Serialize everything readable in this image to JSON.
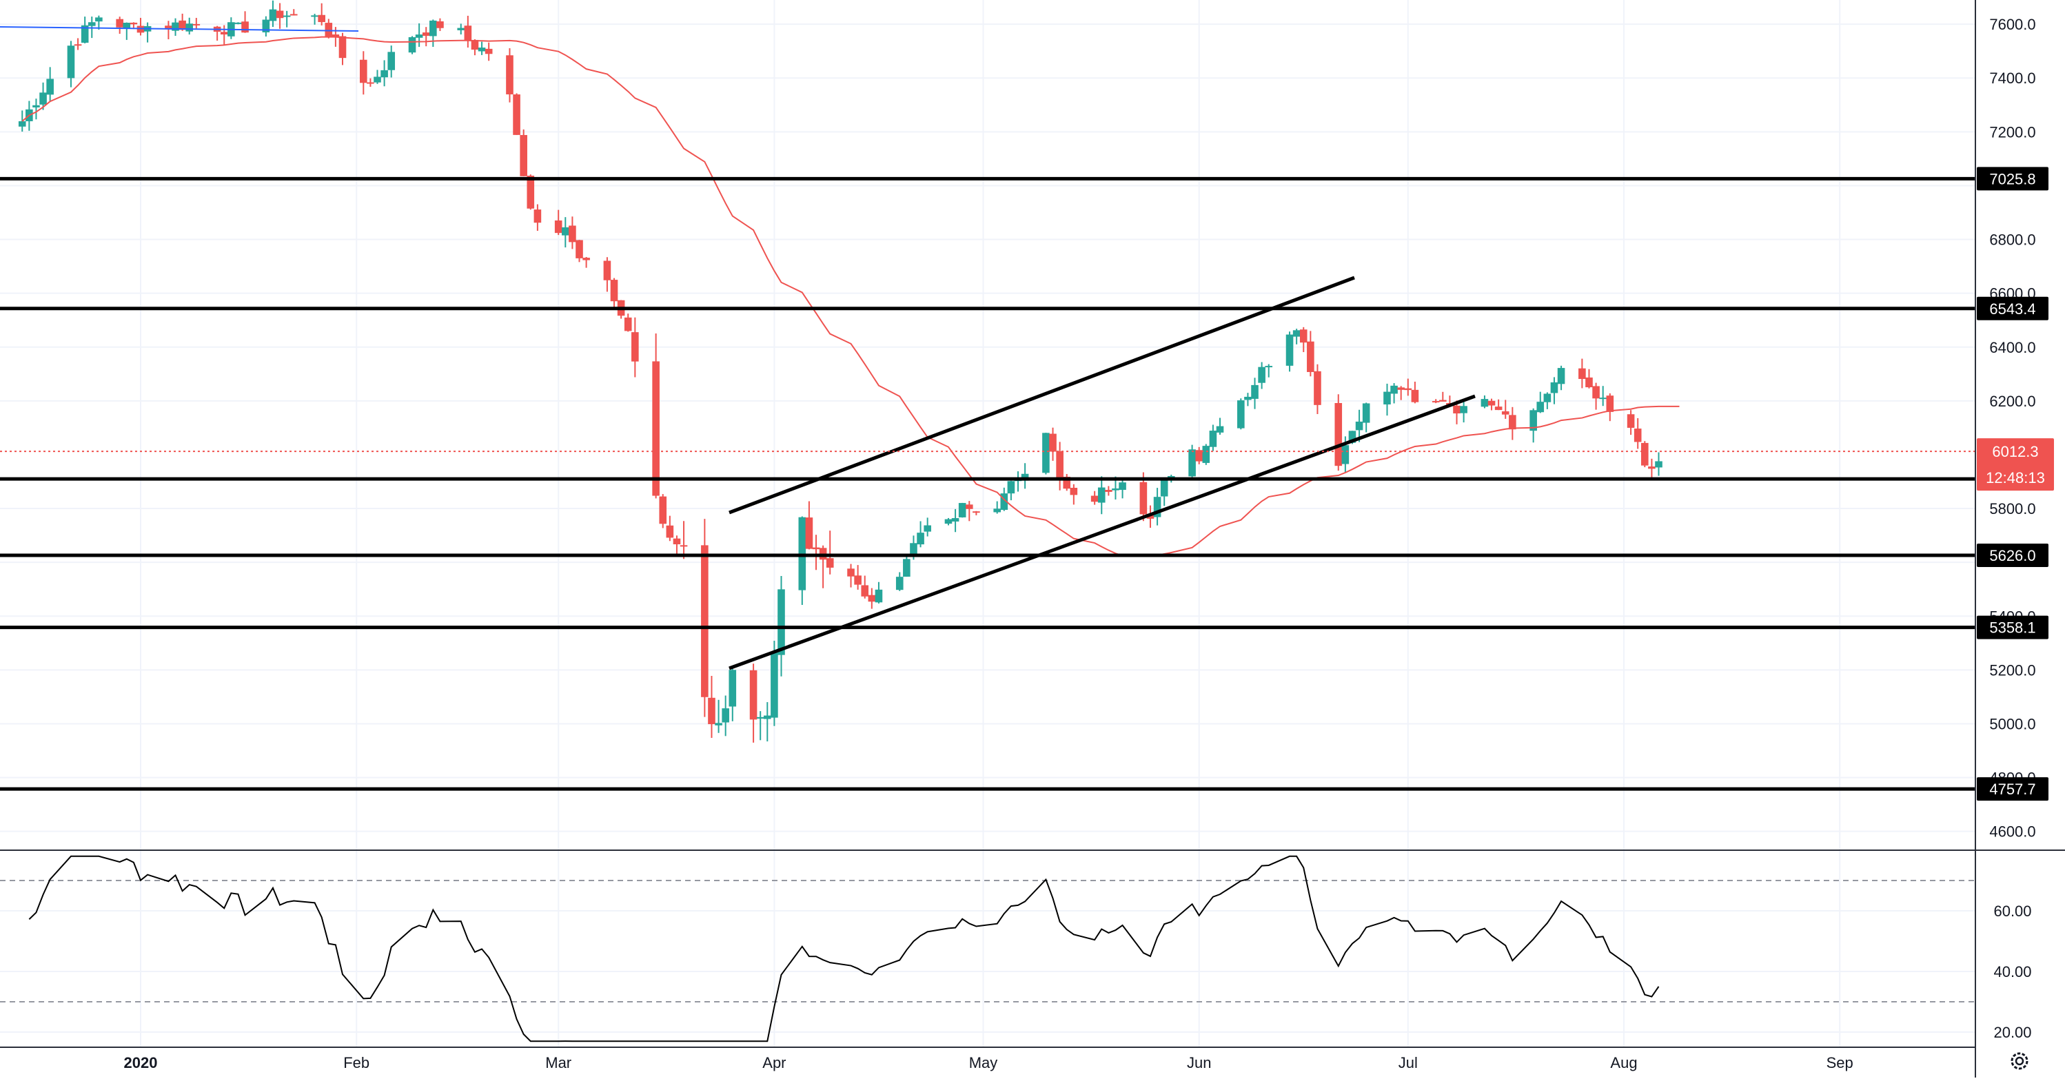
{
  "chart_data": {
    "type": "candlestick",
    "price_axis": {
      "ticks": [
        "7600.0",
        "7400.0",
        "7200.0",
        "6800.0",
        "6600.0",
        "6400.0",
        "6200.0",
        "5800.0",
        "5400.0",
        "5200.0",
        "5000.0",
        "4800.0",
        "4600.0"
      ],
      "range": [
        4530,
        7690
      ]
    },
    "time_axis": {
      "labels": [
        "2020",
        "Feb",
        "Mar",
        "Apr",
        "May",
        "Jun",
        "Jul",
        "Aug",
        "Sep"
      ],
      "bold_label": "2020"
    },
    "levels": [
      {
        "value": 7025.8,
        "label": "7025.8"
      },
      {
        "value": 6543.4,
        "label": "6543.4"
      },
      {
        "value": 5626.0,
        "label": "5626.0"
      },
      {
        "value": 5358.1,
        "label": "5358.1"
      },
      {
        "value": 4757.7,
        "label": "4757.7"
      },
      {
        "value": 5910
      }
    ],
    "last_price": {
      "value": 6012.3,
      "label": "6012.3",
      "countdown": "12:48:13"
    },
    "moving_average_color": "#ef5350",
    "up_color": "#26a69a",
    "down_color": "#ef5350",
    "rsi": {
      "ticks": [
        "60.00",
        "40.00",
        "20.00"
      ],
      "range": [
        15,
        80
      ],
      "bands": [
        70,
        30
      ]
    },
    "settings_icon": "gear-icon"
  }
}
